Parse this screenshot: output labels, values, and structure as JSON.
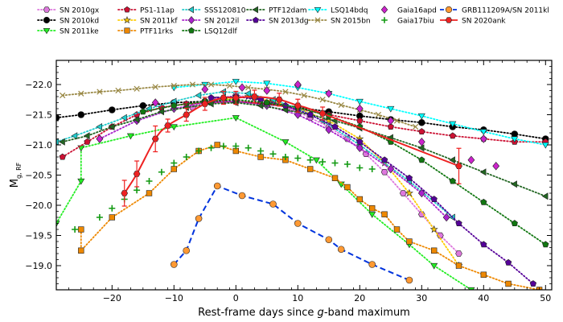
{
  "chart_data": {
    "type": "scatter",
    "xlabel_main": "Rest-frame days since ",
    "xlabel_italic": "g",
    "xlabel_tail": "-band maximum",
    "ylabel_main": "M",
    "ylabel_sub": "g, RF",
    "xlim": [
      -29,
      51
    ],
    "ylim": [
      -18.6,
      -22.4
    ],
    "y_inverted": true,
    "x_ticks": [
      -20,
      -10,
      0,
      10,
      20,
      30,
      40,
      50
    ],
    "y_ticks": [
      -22.0,
      -21.5,
      -21.0,
      -20.5,
      -20.0,
      -19.5,
      -19.0
    ],
    "x_tick_labels": [
      "−20",
      "−10",
      "0",
      "10",
      "20",
      "30",
      "40",
      "50"
    ],
    "y_tick_labels": [
      "−22.0",
      "−21.5",
      "−21.0",
      "−20.5",
      "−20.0",
      "−19.5",
      "−19.0"
    ],
    "legend_placement": "top, above plot",
    "series": [
      {
        "name": "SN 2010gx",
        "color": "#dd77dd",
        "marker": "hexagon",
        "line": "dotted",
        "x": [
          -7,
          -3,
          0,
          3,
          6,
          9,
          12,
          15,
          18,
          21,
          24,
          27,
          30,
          33,
          36
        ],
        "y": [
          -21.62,
          -21.75,
          -21.82,
          -21.78,
          -21.7,
          -21.6,
          -21.45,
          -21.3,
          -21.1,
          -20.85,
          -20.55,
          -20.2,
          -19.85,
          -19.5,
          -19.2
        ]
      },
      {
        "name": "SN 2010kd",
        "color": "#000000",
        "marker": "circle",
        "line": "dotted",
        "x": [
          -29,
          -25,
          -20,
          -15,
          -10,
          -5,
          0,
          5,
          10,
          15,
          20,
          25,
          30,
          35,
          40,
          45,
          50
        ],
        "y": [
          -21.45,
          -21.5,
          -21.58,
          -21.65,
          -21.7,
          -21.72,
          -21.72,
          -21.68,
          -21.62,
          -21.55,
          -21.48,
          -21.42,
          -21.37,
          -21.3,
          -21.25,
          -21.18,
          -21.1
        ]
      },
      {
        "name": "SN 2011ke",
        "color": "#22ee22",
        "marker": "triangle-down",
        "line": "dotted",
        "x": [
          -29,
          -25,
          -25,
          -17,
          -10,
          0,
          8,
          13,
          17,
          22,
          28,
          32,
          38
        ],
        "y": [
          -19.7,
          -20.4,
          -20.95,
          -21.15,
          -21.3,
          -21.45,
          -21.05,
          -20.75,
          -20.35,
          -19.85,
          -19.35,
          -19.0,
          -18.6
        ]
      },
      {
        "name": "PS1-11ap",
        "color": "#cc1133",
        "marker": "pentagon",
        "line": "dotted",
        "x": [
          -28,
          -24,
          -20,
          -16,
          -12,
          -8,
          -4,
          0,
          5,
          10,
          15,
          20,
          25,
          30,
          35,
          40,
          45,
          50
        ],
        "y": [
          -20.8,
          -21.05,
          -21.3,
          -21.5,
          -21.62,
          -21.68,
          -21.7,
          -21.72,
          -21.68,
          -21.6,
          -21.5,
          -21.4,
          -21.3,
          -21.22,
          -21.15,
          -21.1,
          -21.05,
          -21.05
        ]
      },
      {
        "name": "SN 2011kf",
        "color": "#ffcc00",
        "marker": "star",
        "line": "dotted",
        "x": [
          -2,
          2,
          6,
          10,
          15,
          20,
          24,
          28,
          32,
          36
        ],
        "y": [
          -21.75,
          -21.8,
          -21.72,
          -21.6,
          -21.4,
          -21.1,
          -20.7,
          -20.2,
          -19.6,
          -19.0
        ]
      },
      {
        "name": "PTF11rks",
        "color": "#ee8800",
        "marker": "square",
        "line": "dotted",
        "x": [
          -25,
          -25,
          -20,
          -14,
          -10,
          -6,
          -3,
          0,
          4,
          8,
          12,
          16,
          18,
          20,
          22,
          24,
          26,
          28,
          32,
          36,
          40,
          44,
          49
        ],
        "y": [
          -19.6,
          -19.25,
          -19.8,
          -20.2,
          -20.6,
          -20.9,
          -21.0,
          -20.9,
          -20.8,
          -20.75,
          -20.6,
          -20.45,
          -20.3,
          -20.1,
          -19.95,
          -19.85,
          -19.6,
          -19.4,
          -19.25,
          -19.0,
          -18.85,
          -18.7,
          -18.6
        ]
      },
      {
        "name": "SSS120810",
        "color": "#22cccc",
        "marker": "triangle-left",
        "line": "dotted",
        "x": [
          -29,
          -26,
          -22,
          -18,
          -14,
          -10,
          -6,
          -2,
          2,
          6,
          10,
          14,
          20,
          28,
          35
        ],
        "y": [
          -21.05,
          -21.15,
          -21.3,
          -21.45,
          -21.6,
          -21.72,
          -21.82,
          -21.88,
          -21.85,
          -21.75,
          -21.6,
          -21.4,
          -21.0,
          -20.4,
          -19.8
        ]
      },
      {
        "name": "SN 2012il",
        "color": "#aa22cc",
        "marker": "diamond",
        "line": "dotted",
        "x": [
          -22,
          -16,
          -10,
          -5,
          0,
          5,
          10,
          15,
          20,
          25,
          30,
          34
        ],
        "y": [
          -21.1,
          -21.4,
          -21.6,
          -21.7,
          -21.72,
          -21.65,
          -21.5,
          -21.25,
          -20.95,
          -20.6,
          -20.2,
          -19.8
        ]
      },
      {
        "name": "PTF12dam",
        "color": "#226622",
        "marker": "triangle-left",
        "line": "dotted",
        "x": [
          -28,
          -24,
          -20,
          -16,
          -12,
          -8,
          -4,
          0,
          4,
          8,
          12,
          16,
          20,
          25,
          30,
          35,
          40,
          45,
          50
        ],
        "y": [
          -21.05,
          -21.15,
          -21.3,
          -21.42,
          -21.55,
          -21.62,
          -21.68,
          -21.7,
          -21.65,
          -21.58,
          -21.5,
          -21.4,
          -21.28,
          -21.12,
          -20.95,
          -20.75,
          -20.55,
          -20.35,
          -20.15
        ]
      },
      {
        "name": "SN 2013dg",
        "color": "#550099",
        "marker": "pentagon",
        "line": "dotted",
        "x": [
          -4,
          0,
          4,
          8,
          12,
          16,
          20,
          24,
          28,
          32,
          36,
          40,
          44,
          48
        ],
        "y": [
          -21.78,
          -21.8,
          -21.75,
          -21.65,
          -21.5,
          -21.3,
          -21.05,
          -20.75,
          -20.45,
          -20.1,
          -19.7,
          -19.35,
          -19.05,
          -18.7
        ]
      },
      {
        "name": "LSQ12dlf",
        "color": "#117711",
        "marker": "pentagon",
        "line": "dotted",
        "x": [
          -15,
          -10,
          -5,
          0,
          5,
          10,
          15,
          20,
          25,
          30,
          35,
          40,
          45,
          50
        ],
        "y": [
          -21.55,
          -21.65,
          -21.72,
          -21.75,
          -21.7,
          -21.62,
          -21.48,
          -21.3,
          -21.05,
          -20.75,
          -20.4,
          -20.05,
          -19.7,
          -19.35
        ]
      },
      {
        "name": "LSQ14bdq",
        "color": "#00ffff",
        "marker": "triangle-down",
        "line": "dotted",
        "x": [
          -10,
          -5,
          0,
          5,
          10,
          15,
          20,
          25,
          30,
          35,
          40,
          45,
          50
        ],
        "y": [
          -21.95,
          -22.0,
          -22.05,
          -22.02,
          -21.95,
          -21.85,
          -21.72,
          -21.6,
          -21.48,
          -21.35,
          -21.22,
          -21.1,
          -21.0
        ]
      },
      {
        "name": "SN 2015bn",
        "color": "#998844",
        "marker": "x",
        "line": "dotted",
        "x": [
          -28,
          -25,
          -22,
          -19,
          -16,
          -13,
          -10,
          -7,
          -4,
          -1,
          2,
          5,
          8,
          11,
          14,
          17,
          20,
          23,
          26,
          29
        ],
        "y": [
          -21.82,
          -21.85,
          -21.88,
          -21.9,
          -21.93,
          -21.96,
          -21.98,
          -22.0,
          -22.0,
          -21.98,
          -21.95,
          -21.92,
          -21.88,
          -21.82,
          -21.75,
          -21.66,
          -21.58,
          -21.5,
          -21.4,
          -21.3
        ]
      },
      {
        "name": "Gaia16apd",
        "color": "#cc22cc",
        "marker": "diamond",
        "line": "none",
        "x": [
          -22,
          -13,
          -5,
          1,
          5,
          10,
          15,
          20,
          25,
          30,
          38,
          40,
          42
        ],
        "y": [
          -21.1,
          -21.7,
          -21.92,
          -21.95,
          -21.9,
          -22.0,
          -21.85,
          -21.6,
          -21.4,
          -21.05,
          -20.75,
          -21.1,
          -20.65
        ]
      },
      {
        "name": "Gaia17biu",
        "color": "#119911",
        "marker": "plus",
        "line": "none",
        "x": [
          -26,
          -22,
          -20,
          -18,
          -16,
          -14,
          -12,
          -10,
          -8,
          -6,
          -4,
          -2,
          0,
          2,
          4,
          6,
          8,
          10,
          12,
          14,
          16,
          18,
          20,
          22
        ],
        "y": [
          -19.6,
          -19.8,
          -19.95,
          -20.1,
          -20.25,
          -20.4,
          -20.55,
          -20.7,
          -20.8,
          -20.9,
          -20.95,
          -20.98,
          -20.98,
          -20.95,
          -20.9,
          -20.85,
          -20.8,
          -20.78,
          -20.75,
          -20.72,
          -20.7,
          -20.68,
          -20.62,
          -20.6
        ]
      },
      {
        "name": "GRB111209A/SN 2011kl",
        "color": "#0033dd",
        "marker": "circle",
        "line": "dashed",
        "marker_fill": "#ff9933",
        "x": [
          -10,
          -8,
          -6,
          -3,
          1,
          6,
          10,
          15,
          17,
          22,
          28
        ],
        "y": [
          -19.02,
          -19.25,
          -19.78,
          -20.32,
          -20.16,
          -20.02,
          -19.7,
          -19.43,
          -19.27,
          -19.02,
          -18.76
        ]
      },
      {
        "name": "SN 2020ank",
        "color": "#ee2222",
        "marker": "hexagon",
        "line": "solid",
        "x": [
          -18,
          -16,
          -13,
          -11,
          -8,
          -5,
          -2,
          0,
          3,
          7,
          10,
          14,
          36
        ],
        "y": [
          -20.2,
          -20.52,
          -21.1,
          -21.32,
          -21.5,
          -21.68,
          -21.78,
          -21.78,
          -21.8,
          -21.75,
          -21.65,
          -21.52,
          -20.65
        ]
      }
    ]
  }
}
